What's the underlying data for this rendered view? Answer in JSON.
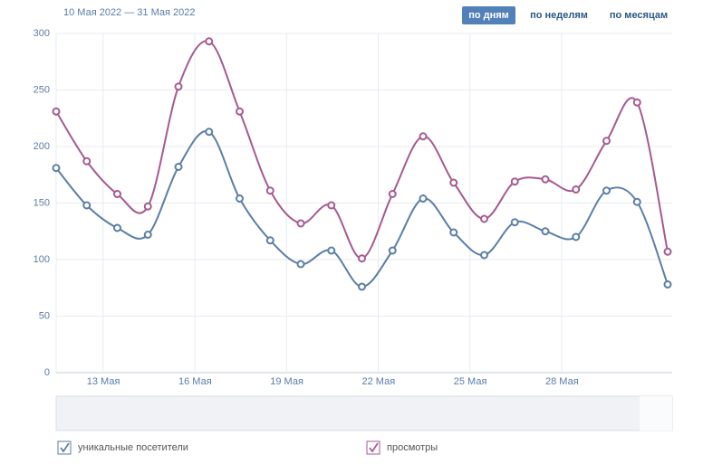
{
  "chart_data": {
    "type": "line",
    "subtitle": "10 Мая 2022 — 31 Мая 2022",
    "buttons": [
      "по дням",
      "по неделям",
      "по месяцам"
    ],
    "categories": [
      null,
      "13 Мая",
      null,
      null,
      "16 Мая",
      null,
      null,
      "19 Мая",
      null,
      null,
      "22 Мая",
      null,
      null,
      "25 Мая",
      null,
      null,
      "28 Мая",
      null,
      null,
      null,
      null
    ],
    "series": [
      {
        "name": "уникальные посетители",
        "color": "#5b7ea6",
        "values": [
          181,
          148,
          128,
          122,
          182,
          213,
          154,
          117,
          96,
          108,
          76,
          108,
          154,
          124,
          104,
          133,
          125,
          120,
          161,
          151,
          78
        ]
      },
      {
        "name": "просмотры",
        "color": "#a55a91",
        "values": [
          231,
          187,
          158,
          147,
          253,
          293,
          231,
          161,
          132,
          148,
          101,
          158,
          209,
          168,
          136,
          169,
          171,
          162,
          205,
          239,
          107
        ]
      }
    ],
    "ylim": [
      0,
      300
    ],
    "yticks": [
      0,
      50,
      100,
      150,
      200,
      250,
      300
    ],
    "grid": true
  }
}
